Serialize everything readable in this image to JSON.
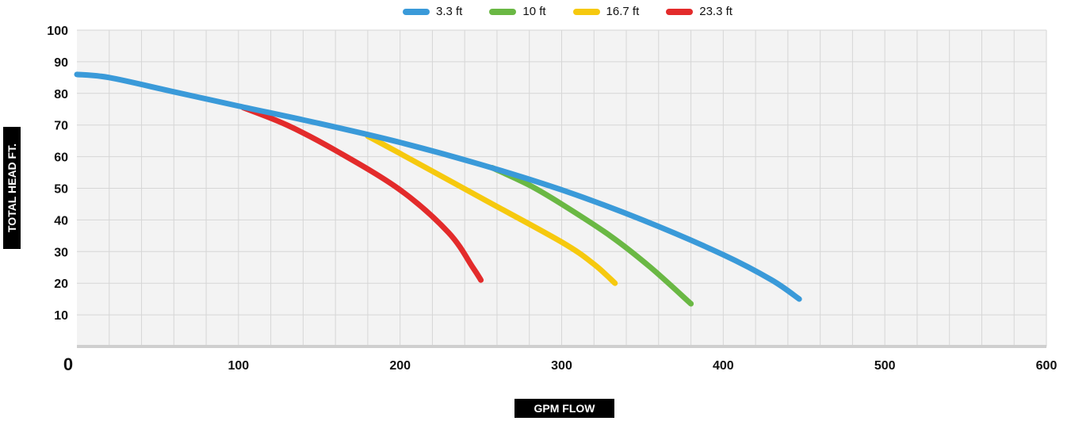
{
  "chart_data": {
    "type": "line",
    "xlabel": "GPM FLOW",
    "ylabel": "TOTAL HEAD FT.",
    "xlim": [
      0,
      600
    ],
    "ylim": [
      0,
      100
    ],
    "x_ticks": [
      "0",
      "100",
      "200",
      "300",
      "400",
      "500",
      "600"
    ],
    "y_ticks": [
      "10",
      "20",
      "30",
      "40",
      "50",
      "60",
      "70",
      "80",
      "90",
      "100"
    ],
    "grid": true,
    "legend_position": "top-center",
    "series": [
      {
        "name": "3.3 ft",
        "color": "#3a9ad9",
        "points": [
          [
            0,
            86
          ],
          [
            20,
            85
          ],
          [
            60,
            80.5
          ],
          [
            100,
            76
          ],
          [
            150,
            70.5
          ],
          [
            200,
            64.5
          ],
          [
            250,
            57.5
          ],
          [
            300,
            49.5
          ],
          [
            350,
            40
          ],
          [
            400,
            29
          ],
          [
            430,
            21
          ],
          [
            447,
            15
          ]
        ]
      },
      {
        "name": "10 ft",
        "color": "#6ab844",
        "points": [
          [
            257,
            56.5
          ],
          [
            280,
            51
          ],
          [
            300,
            45
          ],
          [
            330,
            35
          ],
          [
            355,
            25
          ],
          [
            380,
            13.5
          ]
        ]
      },
      {
        "name": "16.7 ft",
        "color": "#f6c90e",
        "points": [
          [
            180,
            66.5
          ],
          [
            200,
            61
          ],
          [
            250,
            47
          ],
          [
            300,
            33
          ],
          [
            320,
            26
          ],
          [
            333,
            20
          ]
        ]
      },
      {
        "name": "23.3 ft",
        "color": "#e32b2b",
        "points": [
          [
            103,
            75.5
          ],
          [
            130,
            70
          ],
          [
            160,
            62
          ],
          [
            200,
            49.5
          ],
          [
            230,
            36
          ],
          [
            245,
            25
          ],
          [
            250,
            21
          ]
        ]
      }
    ]
  }
}
